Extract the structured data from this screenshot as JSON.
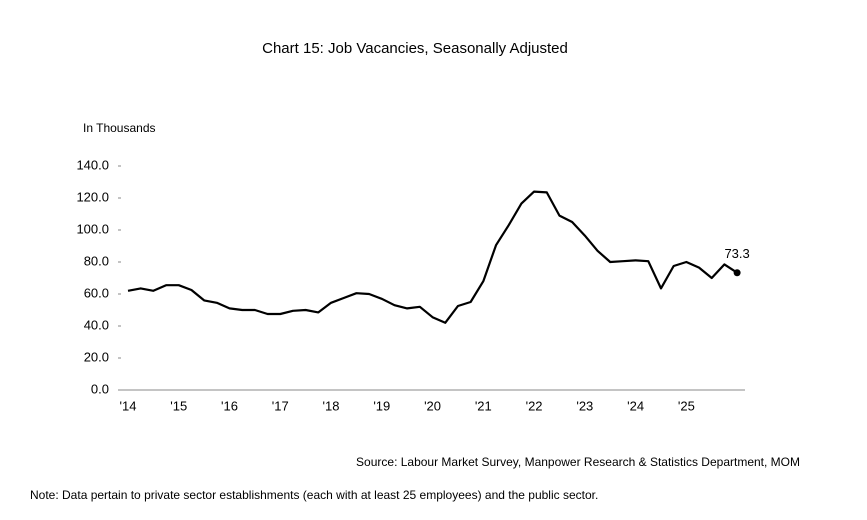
{
  "chart_data": {
    "type": "line",
    "title": "Chart 15: Job Vacancies, Seasonally Adjusted",
    "y_axis_label": "In Thousands",
    "source": "Source: Labour Market Survey, Manpower Research & Statistics Department, MOM",
    "note": "Note: Data pertain to private sector establishments (each with at least 25 employees) and the public sector.",
    "categories": [
      "'14",
      null,
      null,
      null,
      "'15",
      null,
      null,
      null,
      "'16",
      null,
      null,
      null,
      "'17",
      null,
      null,
      null,
      "'18",
      null,
      null,
      null,
      "'19",
      null,
      null,
      null,
      "'20",
      null,
      null,
      null,
      "'21",
      null,
      null,
      null,
      "'22",
      null,
      null,
      null,
      "'23",
      null,
      null,
      null,
      "'24",
      null,
      null,
      null,
      "'25",
      null,
      null,
      null,
      null
    ],
    "series": [
      {
        "name": "Job Vacancies",
        "color": "#000000",
        "values": [
          62,
          63.5,
          62,
          65.5,
          65.5,
          62.5,
          56,
          54.5,
          51,
          50,
          50,
          47.5,
          47.5,
          49.5,
          50,
          48.5,
          54.5,
          57.5,
          60.5,
          60,
          57,
          53,
          51,
          52,
          45.5,
          42,
          52.5,
          55,
          68,
          90.5,
          103,
          116.5,
          124,
          123.5,
          109,
          105,
          96.5,
          87,
          80,
          80.5,
          81,
          80.5,
          63.5,
          77.5,
          80,
          76.5,
          70,
          78.5,
          73.3
        ]
      }
    ],
    "label_last_point": true,
    "ylim": [
      0,
      140
    ],
    "yticks": [
      {
        "value": 0,
        "label": "0.0"
      },
      {
        "value": 20,
        "label": "20.0"
      },
      {
        "value": 40,
        "label": "40.0"
      },
      {
        "value": 60,
        "label": "60.0"
      },
      {
        "value": 80,
        "label": "80.0"
      },
      {
        "value": 100,
        "label": "100.0"
      },
      {
        "value": 120,
        "label": "120.0"
      },
      {
        "value": 140,
        "label": "140.0"
      }
    ],
    "grid": false
  }
}
